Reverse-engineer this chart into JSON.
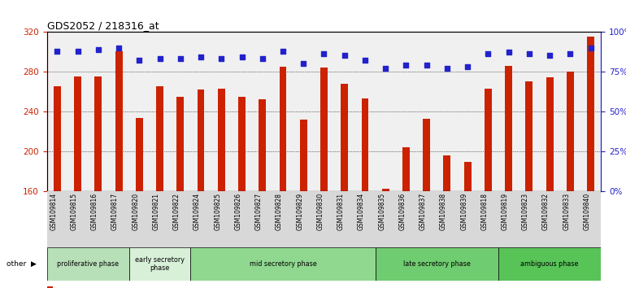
{
  "title": "GDS2052 / 218316_at",
  "samples": [
    "GSM109814",
    "GSM109815",
    "GSM109816",
    "GSM109817",
    "GSM109820",
    "GSM109821",
    "GSM109822",
    "GSM109824",
    "GSM109825",
    "GSM109826",
    "GSM109827",
    "GSM109828",
    "GSM109829",
    "GSM109830",
    "GSM109831",
    "GSM109834",
    "GSM109835",
    "GSM109836",
    "GSM109837",
    "GSM109838",
    "GSM109839",
    "GSM109818",
    "GSM109819",
    "GSM109823",
    "GSM109832",
    "GSM109833",
    "GSM109840"
  ],
  "counts": [
    265,
    275,
    275,
    300,
    234,
    265,
    255,
    262,
    263,
    255,
    252,
    285,
    232,
    284,
    268,
    253,
    163,
    204,
    233,
    196,
    190,
    263,
    286,
    270,
    274,
    280,
    315
  ],
  "percentile_ranks": [
    88,
    88,
    89,
    90,
    82,
    83,
    83,
    84,
    83,
    84,
    83,
    88,
    80,
    86,
    85,
    82,
    77,
    79,
    79,
    77,
    78,
    86,
    87,
    86,
    85,
    86,
    90
  ],
  "phases": [
    {
      "name": "proliferative phase",
      "start": 0,
      "end": 4,
      "color": "#b8e0b8"
    },
    {
      "name": "early secretory\nphase",
      "start": 4,
      "end": 7,
      "color": "#d8f0d8"
    },
    {
      "name": "mid secretory phase",
      "start": 7,
      "end": 16,
      "color": "#90d890"
    },
    {
      "name": "late secretory phase",
      "start": 16,
      "end": 22,
      "color": "#70cc70"
    },
    {
      "name": "ambiguous phase",
      "start": 22,
      "end": 27,
      "color": "#58c458"
    }
  ],
  "ylim_left": [
    160,
    320
  ],
  "ylim_right": [
    0,
    100
  ],
  "yticks_left": [
    160,
    200,
    240,
    280,
    320
  ],
  "yticks_right": [
    0,
    25,
    50,
    75,
    100
  ],
  "bar_color": "#cc2200",
  "dot_color": "#2222cc",
  "bg_color": "#f0f0f0",
  "left_axis_color": "#cc2200",
  "right_axis_color": "#2222cc",
  "legend_count_color": "#cc2200",
  "legend_pct_color": "#2222cc"
}
